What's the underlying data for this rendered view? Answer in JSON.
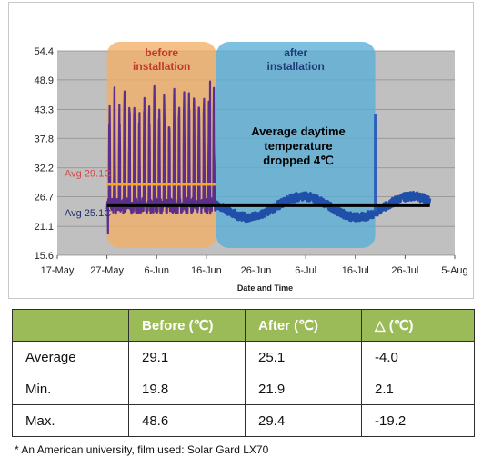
{
  "chart_data": {
    "type": "line",
    "xlabel": "Date and Time",
    "ylabel": "",
    "x_ticks": [
      "17-May",
      "27-May",
      "6-Jun",
      "16-Jun",
      "26-Jun",
      "6-Jul",
      "16-Jul",
      "26-Jul",
      "5-Aug"
    ],
    "y_ticks": [
      "15.6",
      "21.1",
      "26.7",
      "32.2",
      "37.8",
      "43.3",
      "48.9",
      "54.4"
    ],
    "ylim": [
      15.6,
      54.4
    ],
    "grid": "horizontal",
    "regions": [
      {
        "label_line1": "before",
        "label_line2": "installation",
        "color": "#f2b066",
        "label_color": "#c0392b",
        "start": "2011-05-27",
        "end": "2011-06-18"
      },
      {
        "label_line1": "after",
        "label_line2": "installation",
        "color": "#5aaed6",
        "label_color": "#1f3b7a",
        "start": "2011-06-18",
        "end": "2011-07-20"
      }
    ],
    "reference_lines": [
      {
        "label": "Avg 29.1C",
        "value": 29.1,
        "color": "#f5a623",
        "start": "2011-05-27",
        "end": "2011-06-18"
      },
      {
        "label": "Avg 25.1C",
        "value": 25.1,
        "color": "#000000",
        "start": "2011-05-27",
        "end": "2011-07-31"
      }
    ],
    "annotation": {
      "line1": "Average daytime",
      "line2": "temperature",
      "line3": "dropped 4℃"
    },
    "series": [
      {
        "color": "#5b2f8a",
        "start": "2011-05-27",
        "end": "2011-06-18",
        "min": 19.8,
        "max": 48.6,
        "base": 25.5
      },
      {
        "color": "#1f4fa8",
        "start": "2011-06-18",
        "end": "2011-07-31",
        "min": 21.9,
        "max": 29.4,
        "base": 24.8
      }
    ],
    "spike": {
      "date": "2011-07-20",
      "value": 42.5,
      "color": "#2f5fb8"
    }
  },
  "table": {
    "headers": [
      "",
      "Before (℃)",
      "After (℃)",
      "△ (℃)"
    ],
    "rows": [
      [
        "Average",
        "29.1",
        "25.1",
        "-4.0"
      ],
      [
        "Min.",
        "19.8",
        "21.9",
        "2.1"
      ],
      [
        "Max.",
        "48.6",
        "29.4",
        "-19.2"
      ]
    ]
  },
  "footnote": "* An American university, film used: Solar Gard LX70"
}
